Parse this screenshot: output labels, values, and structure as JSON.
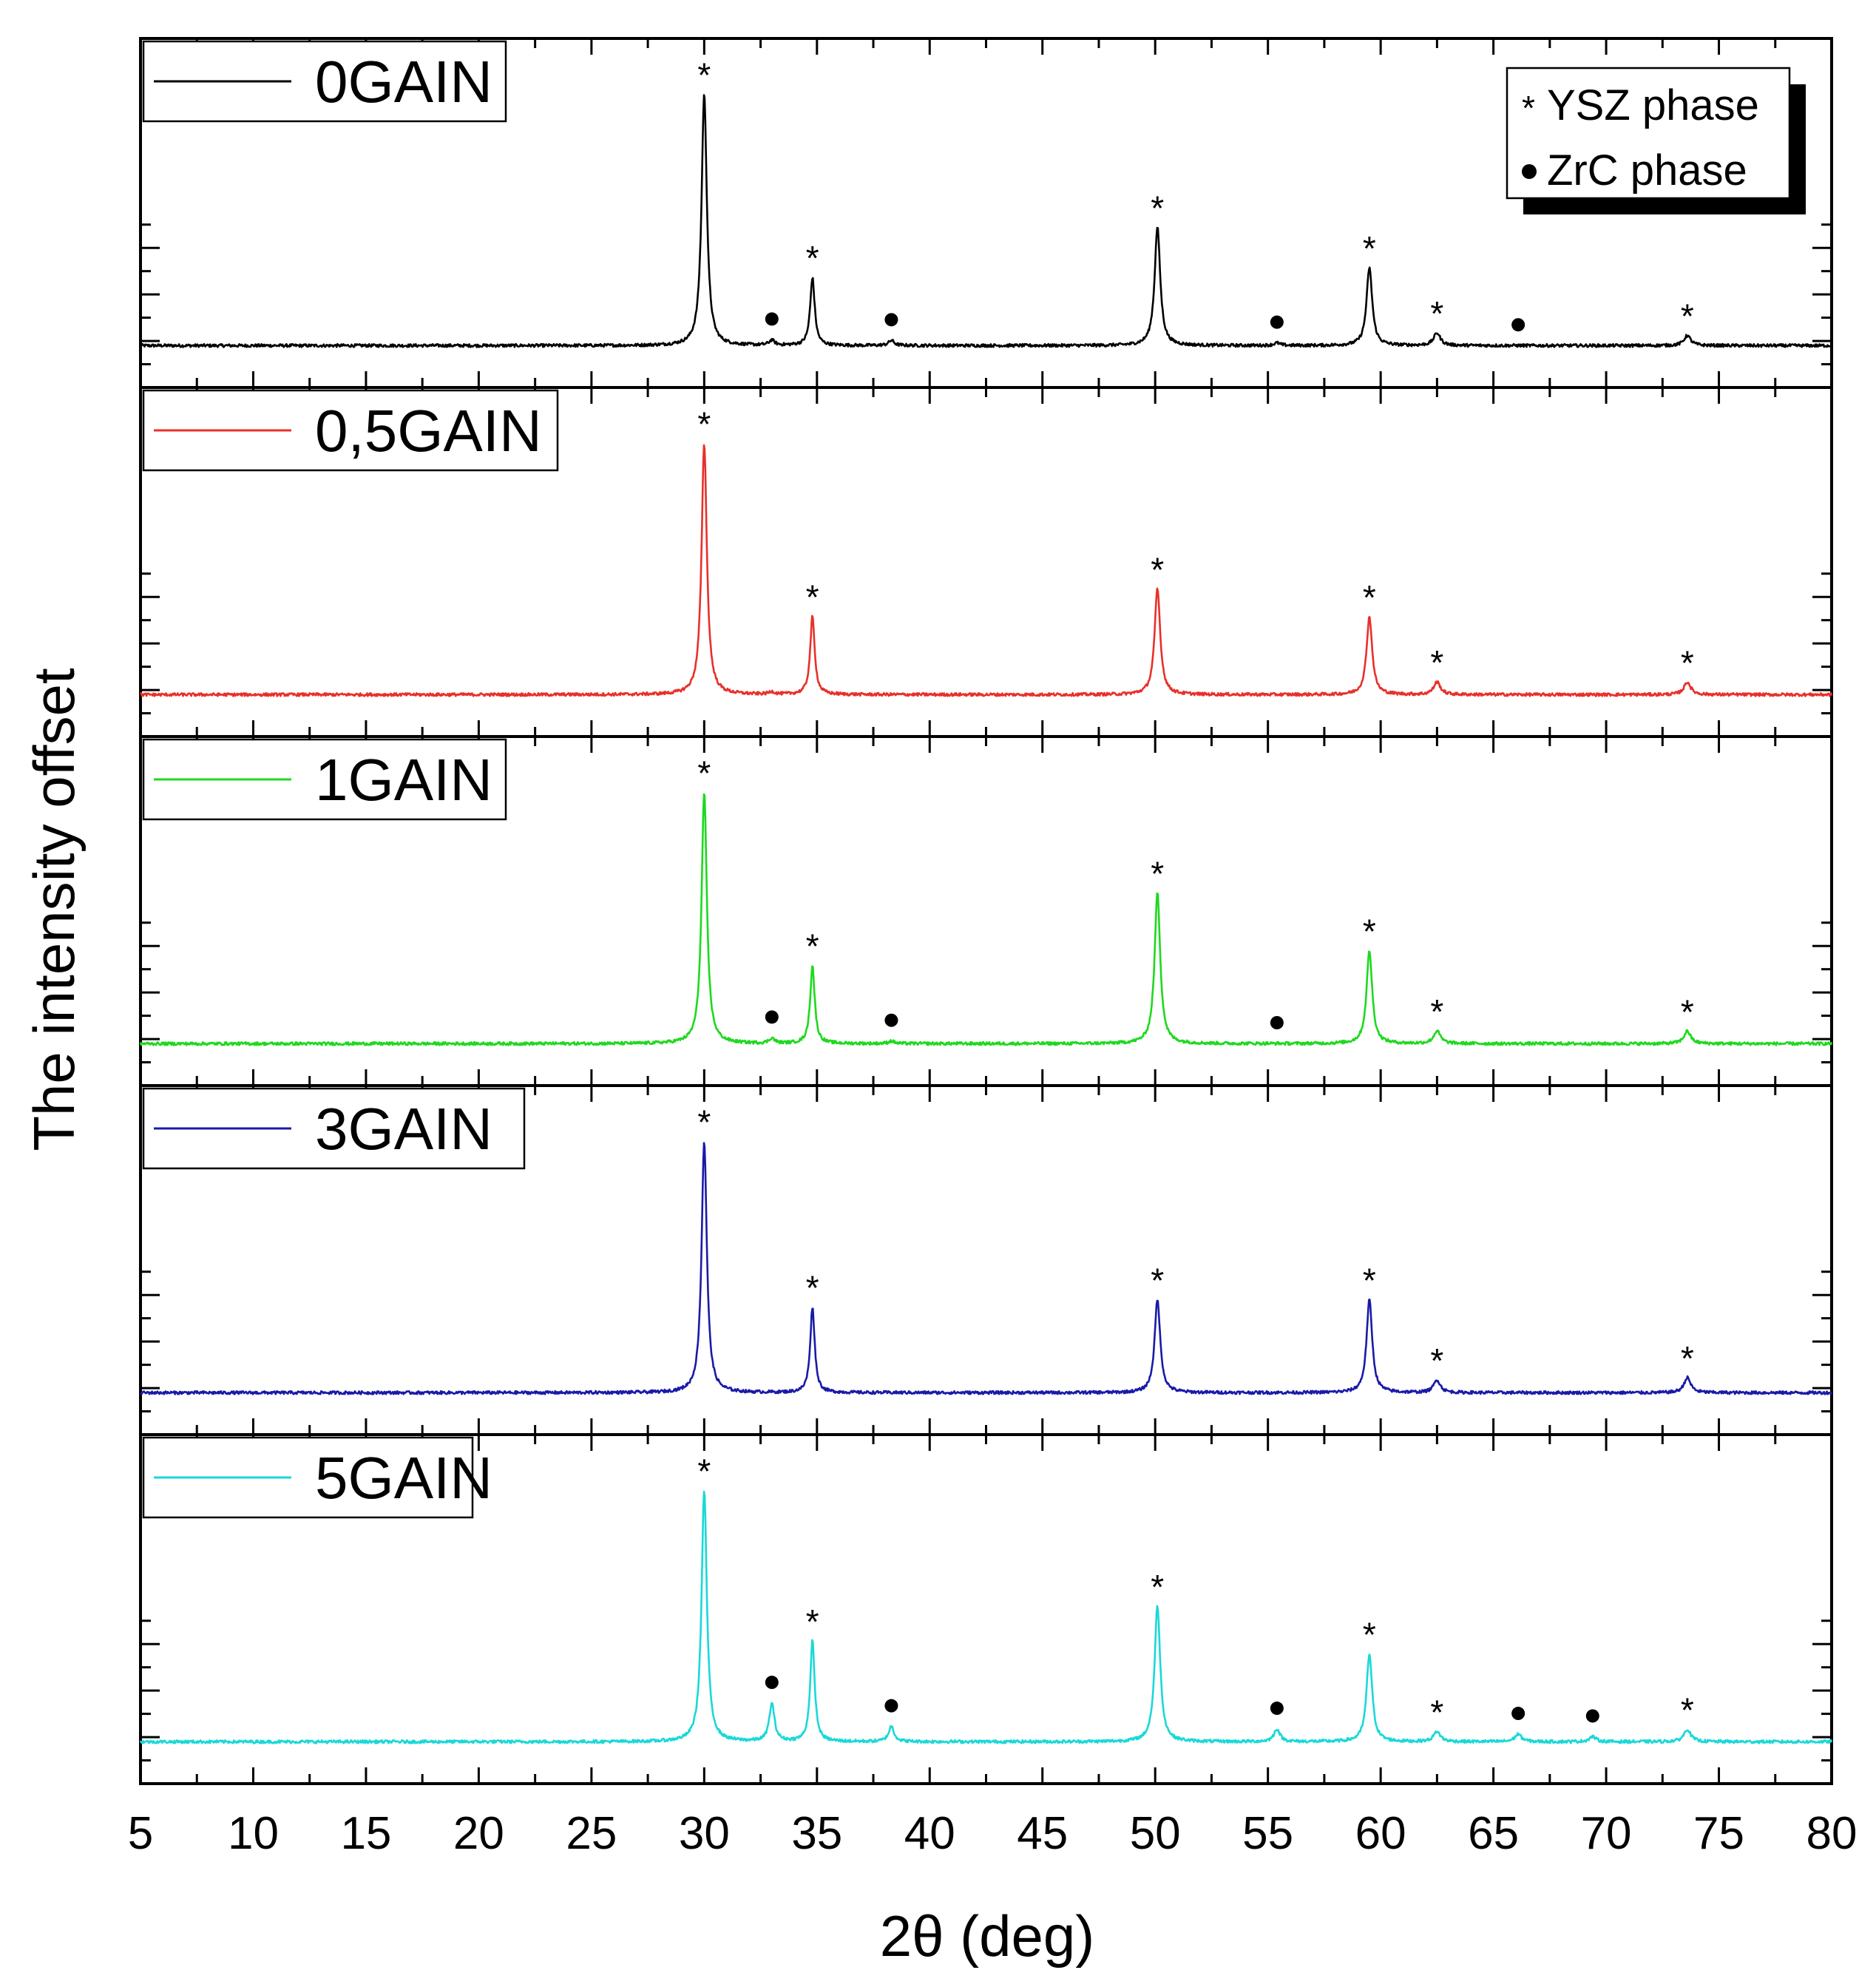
{
  "chart_data": {
    "type": "line",
    "xlabel": "2θ (deg)",
    "ylabel": "The intensity offset",
    "xlim": [
      5,
      80
    ],
    "xticks": [
      "5",
      "10",
      "15",
      "20",
      "25",
      "30",
      "35",
      "40",
      "45",
      "50",
      "55",
      "60",
      "65",
      "70",
      "75",
      "80"
    ],
    "phase_legend": [
      {
        "symbol": "*",
        "label": "YSZ phase"
      },
      {
        "symbol": "●",
        "label": "ZrC phase"
      }
    ],
    "peaks": {
      "ysz": [
        {
          "pos": 30.0,
          "width": 0.14
        },
        {
          "pos": 34.8,
          "width": 0.12
        },
        {
          "pos": 50.1,
          "width": 0.15
        },
        {
          "pos": 59.5,
          "width": 0.15
        },
        {
          "pos": 62.5,
          "width": 0.18
        },
        {
          "pos": 73.6,
          "width": 0.18
        }
      ],
      "zrc": [
        {
          "pos": 33.0,
          "width": 0.14
        },
        {
          "pos": 38.3,
          "width": 0.15
        },
        {
          "pos": 55.4,
          "width": 0.16
        },
        {
          "pos": 66.1,
          "width": 0.18
        },
        {
          "pos": 69.4,
          "width": 0.18
        }
      ]
    },
    "series": [
      {
        "name": "0GAIN",
        "color": "#000000",
        "ysz_heights": [
          1.0,
          0.27,
          0.47,
          0.31,
          0.05,
          0.04
        ],
        "zrc_heights": [
          0.02,
          0.02,
          0.01,
          0.0,
          0.0
        ],
        "ysz_marks": [
          0,
          1,
          2,
          3,
          4,
          5
        ],
        "zrc_marks": [
          0,
          1,
          2,
          3
        ]
      },
      {
        "name": "0,5GAIN",
        "color": "#e8302a",
        "ysz_heights": [
          1.0,
          0.31,
          0.42,
          0.31,
          0.05,
          0.05
        ],
        "zrc_heights": [
          0.01,
          0.0,
          0.0,
          0.0,
          0.0
        ],
        "ysz_marks": [
          0,
          1,
          2,
          3,
          4,
          5
        ],
        "zrc_marks": []
      },
      {
        "name": "1GAIN",
        "color": "#1ed91e",
        "ysz_heights": [
          1.0,
          0.31,
          0.6,
          0.37,
          0.05,
          0.05
        ],
        "zrc_heights": [
          0.02,
          0.01,
          0.0,
          0.0,
          0.0
        ],
        "ysz_marks": [
          0,
          1,
          2,
          3,
          4,
          5
        ],
        "zrc_marks": [
          0,
          1,
          2
        ]
      },
      {
        "name": "3GAIN",
        "color": "#1a1aa8",
        "ysz_heights": [
          1.0,
          0.34,
          0.37,
          0.37,
          0.05,
          0.06
        ],
        "zrc_heights": [
          0.0,
          0.0,
          0.0,
          0.0,
          0.0
        ],
        "ysz_marks": [
          0,
          1,
          2,
          3,
          4,
          5
        ],
        "zrc_marks": []
      },
      {
        "name": "5GAIN",
        "color": "#1ad8d8",
        "ysz_heights": [
          1.0,
          0.4,
          0.54,
          0.35,
          0.04,
          0.05
        ],
        "zrc_heights": [
          0.15,
          0.06,
          0.05,
          0.03,
          0.02
        ],
        "ysz_marks": [
          0,
          1,
          2,
          3,
          4,
          5
        ],
        "zrc_marks": [
          0,
          1,
          2,
          3,
          4
        ]
      }
    ]
  }
}
